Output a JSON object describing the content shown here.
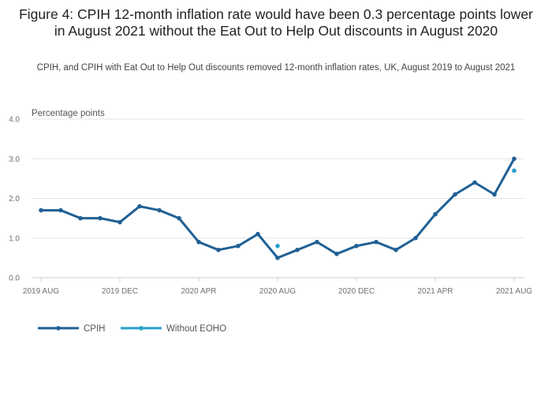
{
  "chart_data": {
    "type": "line",
    "title": "Figure 4: CPIH 12-month inflation rate would have been 0.3 percentage points lower in August 2021 without the Eat Out to Help Out discounts in August 2020",
    "subtitle": "CPIH, and CPIH with Eat Out to Help Out discounts removed 12-month inflation rates, UK, August 2019 to August 2021",
    "ylabel": "Percentage points",
    "ylim": [
      0,
      4
    ],
    "yticks": [
      "0.0",
      "1.0",
      "2.0",
      "3.0",
      "4.0"
    ],
    "x_tick_labels": [
      "2019 AUG",
      "2019 DEC",
      "2020 APR",
      "2020 AUG",
      "2020 DEC",
      "2021 APR",
      "2021 AUG"
    ],
    "x_tick_indices": [
      0,
      4,
      8,
      12,
      16,
      20,
      24
    ],
    "grid": true,
    "legend_position": "bottom-left",
    "series": [
      {
        "name": "CPIH",
        "color": "#206095",
        "values": [
          1.7,
          1.7,
          1.5,
          1.5,
          1.4,
          1.8,
          1.7,
          1.5,
          0.9,
          0.7,
          0.8,
          1.1,
          0.5,
          0.7,
          0.9,
          0.6,
          0.8,
          0.9,
          0.7,
          1.0,
          1.6,
          2.1,
          2.4,
          2.1,
          3.0
        ]
      },
      {
        "name": "Without EOHO",
        "color": "#27A0CC",
        "values": [
          null,
          null,
          null,
          null,
          null,
          null,
          null,
          null,
          null,
          null,
          null,
          null,
          0.8,
          null,
          null,
          null,
          null,
          null,
          null,
          null,
          null,
          null,
          null,
          null,
          2.7
        ]
      }
    ]
  }
}
